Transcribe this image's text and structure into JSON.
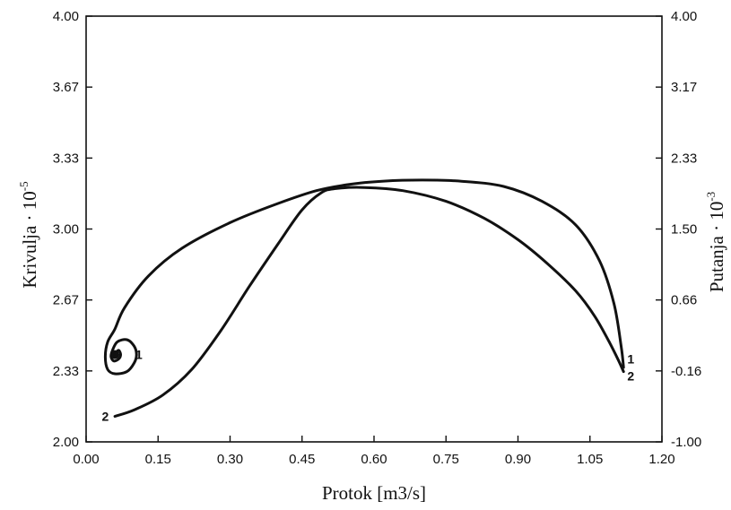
{
  "chart_data": {
    "type": "line",
    "title": "",
    "xlabel": "Protok [m3/s]",
    "ylabel": "Krivulja",
    "ylabel_exponent": "-5",
    "y2label": "Putanja",
    "y2label_exponent": "-3",
    "xlim": [
      0.0,
      1.2
    ],
    "ylim": [
      2.0,
      4.0
    ],
    "y2lim": [
      -1.0,
      4.0
    ],
    "x_ticks": [
      "0.00",
      "0.15",
      "0.30",
      "0.45",
      "0.60",
      "0.75",
      "0.90",
      "1.05",
      "1.20"
    ],
    "y_ticks": [
      "2.00",
      "2.33",
      "2.67",
      "3.00",
      "3.33",
      "3.67",
      "4.00"
    ],
    "y2_ticks": [
      "-1.00",
      "-0.16",
      "0.66",
      "1.50",
      "2.33",
      "3.17",
      "4.00"
    ],
    "grid": false,
    "series": [
      {
        "name": "1",
        "x": [
          1.12,
          1.115,
          1.1,
          1.07,
          1.02,
          0.95,
          0.87,
          0.78,
          0.7,
          0.62,
          0.55,
          0.48,
          0.4,
          0.3,
          0.2,
          0.13,
          0.08,
          0.06,
          0.045,
          0.04,
          0.045,
          0.06,
          0.085,
          0.1,
          0.105,
          0.1,
          0.085,
          0.065,
          0.055,
          0.052,
          0.058,
          0.068,
          0.072,
          0.068,
          0.062,
          0.06
        ],
        "y": [
          2.35,
          2.45,
          2.65,
          2.85,
          3.02,
          3.13,
          3.2,
          3.225,
          3.23,
          3.225,
          3.21,
          3.18,
          3.12,
          3.03,
          2.91,
          2.78,
          2.63,
          2.53,
          2.47,
          2.4,
          2.34,
          2.32,
          2.33,
          2.37,
          2.41,
          2.45,
          2.48,
          2.47,
          2.43,
          2.4,
          2.38,
          2.39,
          2.41,
          2.43,
          2.42,
          2.41
        ]
      },
      {
        "name": "2",
        "x": [
          0.06,
          0.1,
          0.16,
          0.22,
          0.28,
          0.34,
          0.4,
          0.45,
          0.49,
          0.52,
          0.58,
          0.66,
          0.75,
          0.83,
          0.9,
          0.96,
          1.02,
          1.06,
          1.09,
          1.11,
          1.12
        ],
        "y": [
          2.12,
          2.15,
          2.22,
          2.34,
          2.52,
          2.73,
          2.93,
          3.09,
          3.17,
          3.19,
          3.195,
          3.18,
          3.13,
          3.05,
          2.95,
          2.84,
          2.71,
          2.59,
          2.47,
          2.38,
          2.33
        ]
      }
    ],
    "annotations": [
      {
        "text": "1",
        "x": 1.135,
        "y": 2.39
      },
      {
        "text": "2",
        "x": 1.135,
        "y": 2.31
      },
      {
        "text": "1",
        "x": 0.11,
        "y": 2.41
      },
      {
        "text": "2",
        "x": 0.04,
        "y": 2.12
      }
    ]
  }
}
